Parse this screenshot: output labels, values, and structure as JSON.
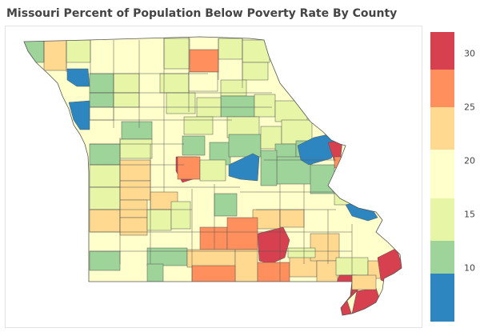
{
  "title": "Missouri Percent of Population Below Poverty Rate By County",
  "colors": {
    "lt_10": "#2e86c1",
    "10_15": "#9ed49a",
    "15_18": "#e6f5a6",
    "18_21": "#ffffcc",
    "21_25": "#ffd98f",
    "25_30": "#ff8f5c",
    "gt_30": "#d7404e"
  },
  "legend": {
    "min": 5,
    "max": 32,
    "bands": [
      {
        "from": 5,
        "to": 9.5,
        "color": "#2e86c1"
      },
      {
        "from": 9.5,
        "to": 12.5,
        "color": "#9ed49a"
      },
      {
        "from": 12.5,
        "to": 16.5,
        "color": "#e6f5a6"
      },
      {
        "from": 16.5,
        "to": 21,
        "color": "#ffffcc"
      },
      {
        "from": 21,
        "to": 25,
        "color": "#ffd98f"
      },
      {
        "from": 25,
        "to": 28.5,
        "color": "#ff8f5c"
      },
      {
        "from": 28.5,
        "to": 32,
        "color": "#d7404e"
      }
    ],
    "ticks": [
      "10",
      "15",
      "20",
      "25",
      "30"
    ]
  }
}
